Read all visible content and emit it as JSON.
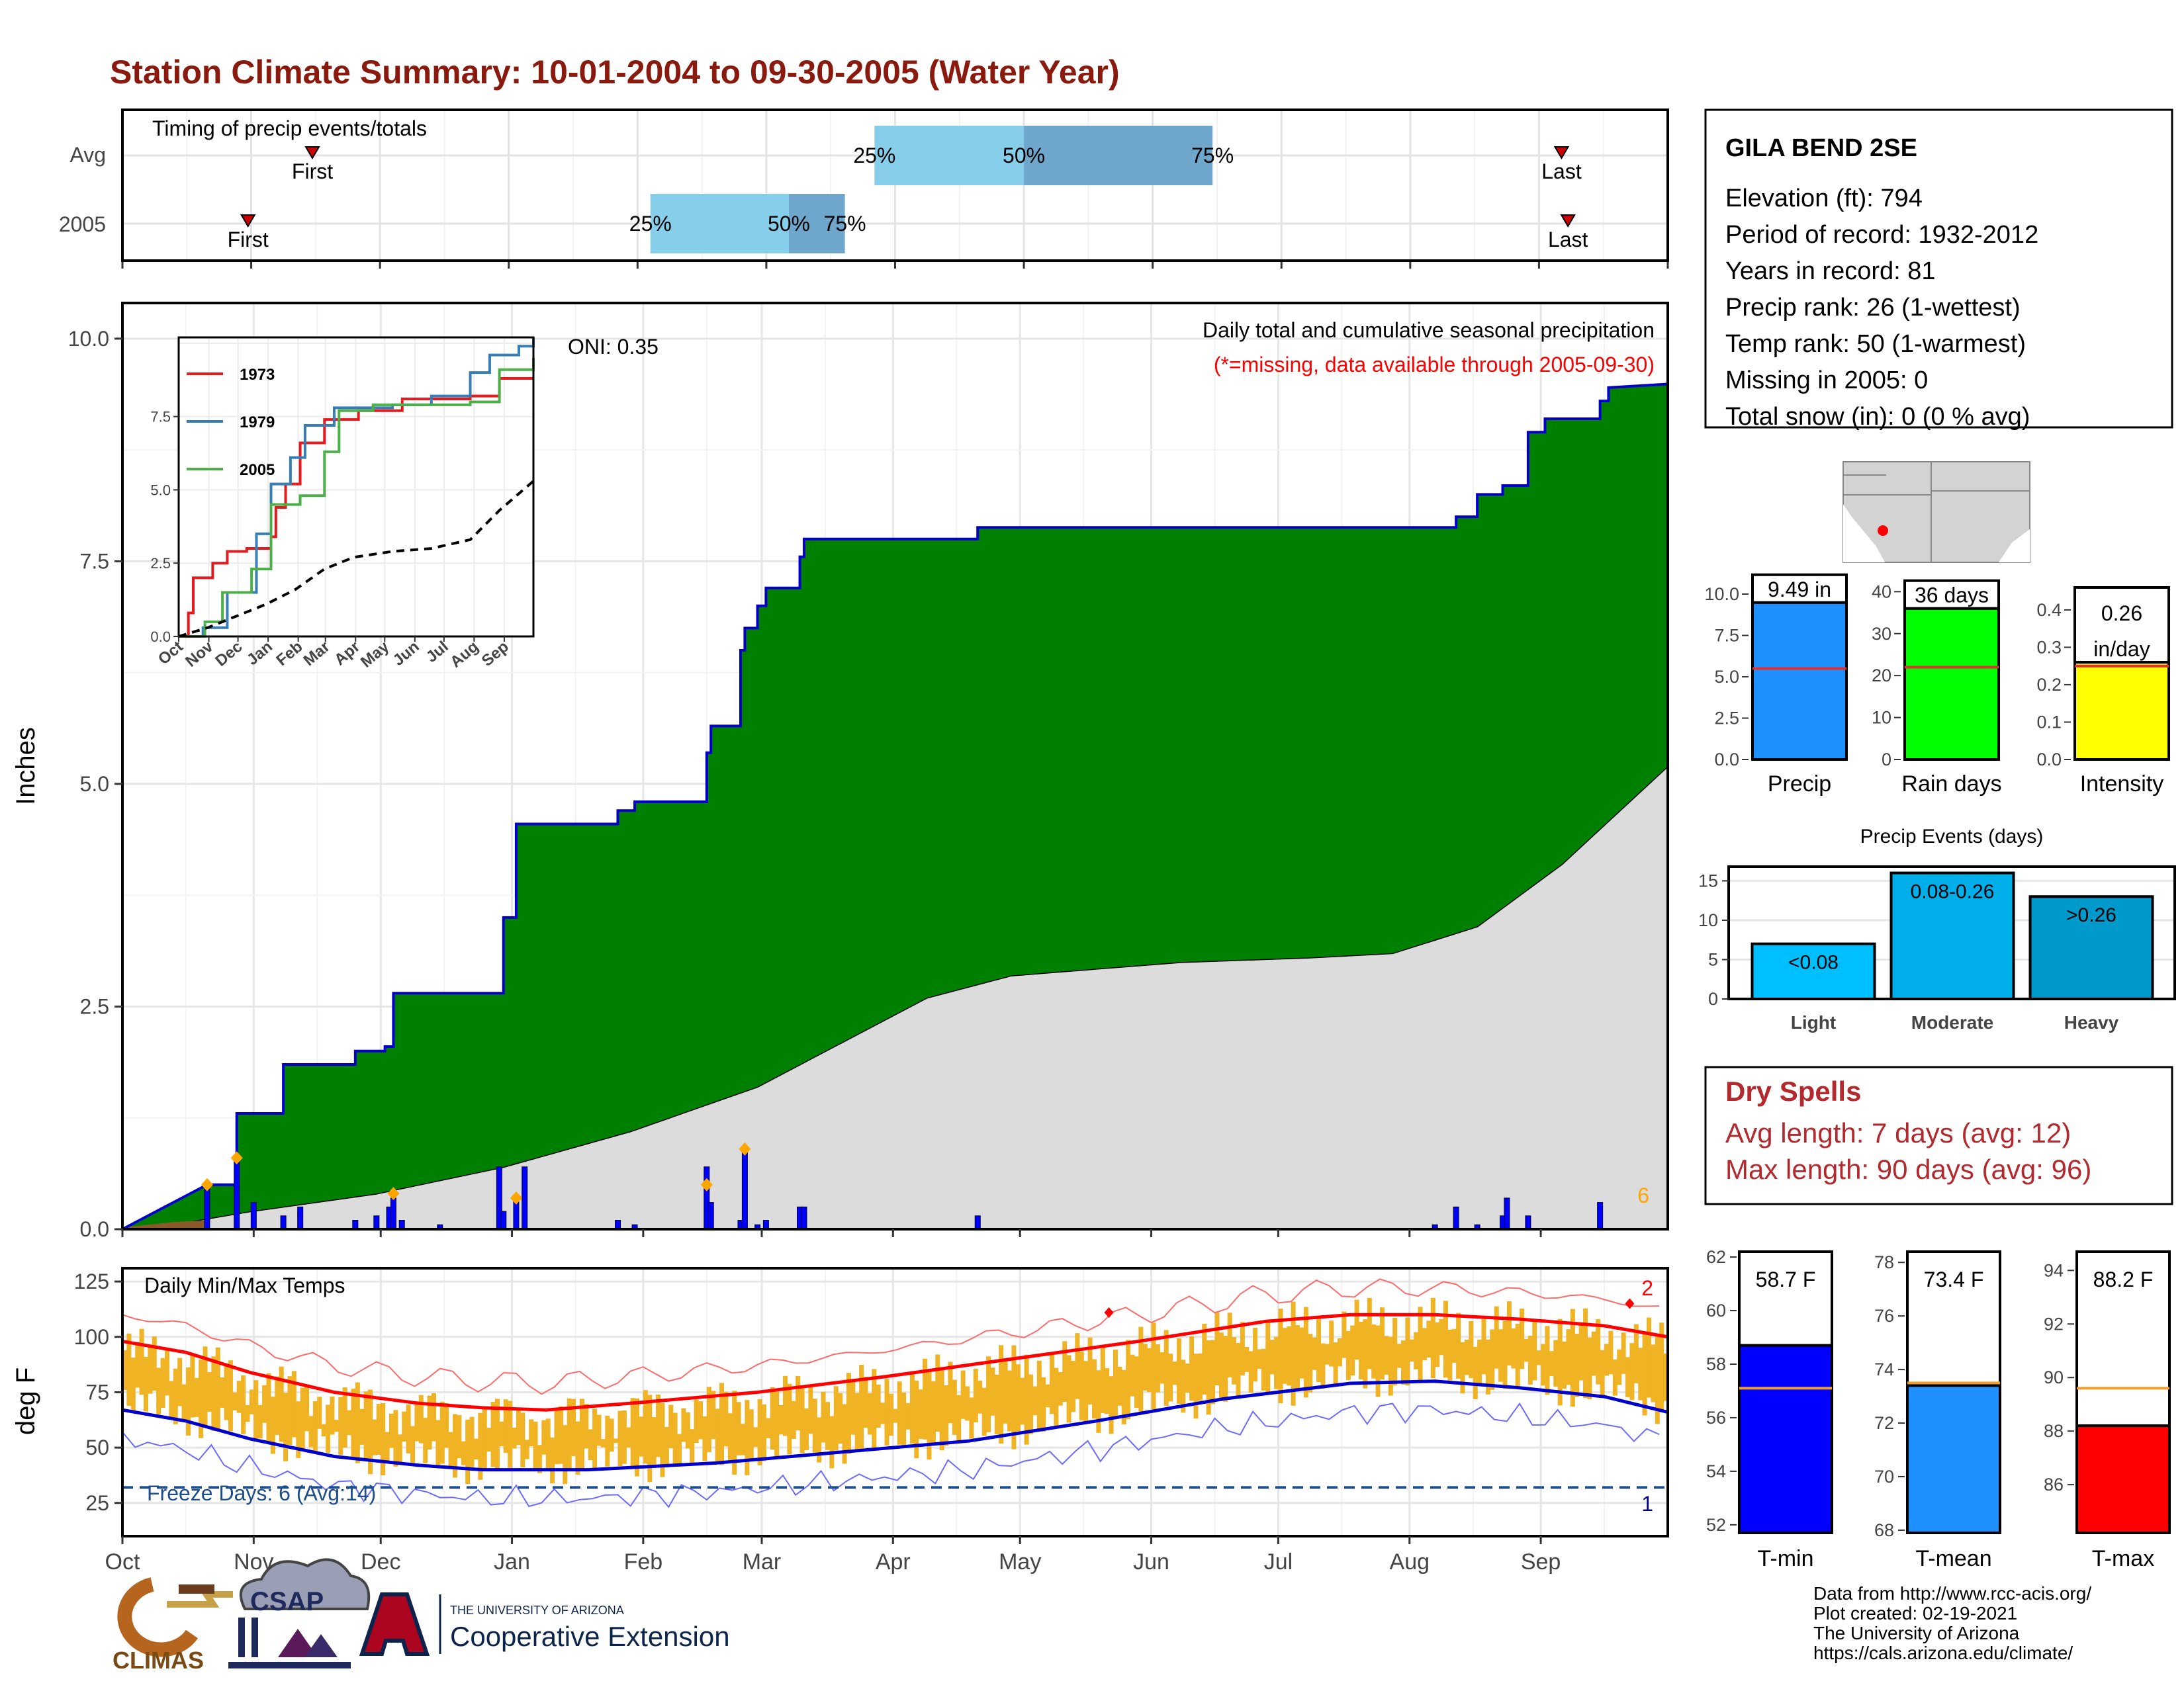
{
  "title": "Station Climate Summary: 10-01-2004 to 09-30-2005 (Water Year)",
  "timing": {
    "title": "Timing of precip events/totals",
    "rows": [
      {
        "label": "Avg",
        "first": 2.95,
        "p25": 11.68,
        "p50": 14.0,
        "p75": 16.93,
        "last": 22.35
      },
      {
        "label": "2005",
        "first": 1.95,
        "p25": 8.2,
        "p50": 10.35,
        "p75": 11.22,
        "last": 22.45
      }
    ],
    "first_label": "First",
    "last_label": "Last",
    "q_labels": [
      "25%",
      "50%",
      "75%"
    ]
  },
  "months": [
    "Oct",
    "Nov",
    "Dec",
    "Jan",
    "Feb",
    "Mar",
    "Apr",
    "May",
    "Jun",
    "Jul",
    "Aug",
    "Sep"
  ],
  "precip": {
    "ylabel": "Inches",
    "yticks": [
      "0.0",
      "2.5",
      "5.0",
      "7.5",
      "10.0"
    ],
    "ylim": [
      0,
      10.4
    ],
    "legend_line1": "Daily total and cumulative seasonal precipitation",
    "legend_line2": "(*=missing, data available through 2005-09-30)",
    "oni": "ONI: 0.35",
    "extreme_count": "6",
    "total": 9.49
  },
  "chart_data": {
    "type": "area",
    "title": "Daily total and cumulative seasonal precipitation",
    "ylabel": "Inches",
    "x_unit": "day of water year",
    "cumulative_2005": [
      [
        0,
        0
      ],
      [
        20,
        0.5
      ],
      [
        27,
        0.5
      ],
      [
        27,
        1.3
      ],
      [
        38,
        1.3
      ],
      [
        38,
        1.85
      ],
      [
        55,
        1.85
      ],
      [
        55,
        2.0
      ],
      [
        62,
        2.0
      ],
      [
        62,
        2.05
      ],
      [
        64,
        2.05
      ],
      [
        64,
        2.65
      ],
      [
        90,
        2.65
      ],
      [
        90,
        3.5
      ],
      [
        93,
        3.5
      ],
      [
        93,
        4.55
      ],
      [
        117,
        4.55
      ],
      [
        117,
        4.7
      ],
      [
        121,
        4.7
      ],
      [
        121,
        4.8
      ],
      [
        138,
        4.8
      ],
      [
        138,
        5.35
      ],
      [
        139,
        5.35
      ],
      [
        139,
        5.65
      ],
      [
        146,
        5.65
      ],
      [
        146,
        6.5
      ],
      [
        147,
        6.5
      ],
      [
        147,
        6.75
      ],
      [
        150,
        6.75
      ],
      [
        150,
        7.0
      ],
      [
        152,
        7.0
      ],
      [
        152,
        7.2
      ],
      [
        160,
        7.2
      ],
      [
        160,
        7.55
      ],
      [
        161,
        7.55
      ],
      [
        161,
        7.75
      ],
      [
        202,
        7.75
      ],
      [
        202,
        7.88
      ],
      [
        315,
        7.88
      ],
      [
        315,
        8.0
      ],
      [
        320,
        8.0
      ],
      [
        320,
        8.25
      ],
      [
        326,
        8.25
      ],
      [
        326,
        8.35
      ],
      [
        332,
        8.35
      ],
      [
        332,
        8.95
      ],
      [
        336,
        8.95
      ],
      [
        336,
        9.1
      ],
      [
        349,
        9.1
      ],
      [
        349,
        9.3
      ],
      [
        351,
        9.3
      ],
      [
        351,
        9.45
      ],
      [
        365,
        9.49
      ]
    ],
    "average_cumulative": [
      [
        0,
        0
      ],
      [
        15,
        0.08
      ],
      [
        30,
        0.2
      ],
      [
        60,
        0.4
      ],
      [
        90,
        0.7
      ],
      [
        120,
        1.1
      ],
      [
        150,
        1.6
      ],
      [
        170,
        2.1
      ],
      [
        190,
        2.6
      ],
      [
        210,
        2.85
      ],
      [
        250,
        3.0
      ],
      [
        280,
        3.05
      ],
      [
        300,
        3.1
      ],
      [
        320,
        3.4
      ],
      [
        340,
        4.1
      ],
      [
        365,
        5.2
      ]
    ],
    "daily_bars": [
      [
        20,
        0.5
      ],
      [
        27,
        0.8
      ],
      [
        31,
        0.3
      ],
      [
        38,
        0.15
      ],
      [
        42,
        0.25
      ],
      [
        55,
        0.1
      ],
      [
        60,
        0.15
      ],
      [
        63,
        0.25
      ],
      [
        64,
        0.35
      ],
      [
        66,
        0.1
      ],
      [
        75,
        0.05
      ],
      [
        89,
        0.7
      ],
      [
        90,
        0.2
      ],
      [
        93,
        0.35
      ],
      [
        95,
        0.7
      ],
      [
        117,
        0.1
      ],
      [
        121,
        0.05
      ],
      [
        138,
        0.7
      ],
      [
        139,
        0.3
      ],
      [
        146,
        0.1
      ],
      [
        147,
        0.9
      ],
      [
        150,
        0.05
      ],
      [
        152,
        0.1
      ],
      [
        160,
        0.25
      ],
      [
        161,
        0.25
      ],
      [
        202,
        0.15
      ],
      [
        310,
        0.05
      ],
      [
        315,
        0.25
      ],
      [
        320,
        0.05
      ],
      [
        326,
        0.15
      ],
      [
        327,
        0.35
      ],
      [
        332,
        0.15
      ],
      [
        349,
        0.3
      ]
    ],
    "extreme_markers": [
      [
        20,
        0.5
      ],
      [
        27,
        0.8
      ],
      [
        64,
        0.4
      ],
      [
        93,
        0.35
      ],
      [
        138,
        0.5
      ],
      [
        147,
        0.9
      ]
    ],
    "inset": {
      "yticks": [
        "0.0",
        "2.5",
        "5.0",
        "7.5"
      ],
      "xticks": [
        "Oct",
        "Nov",
        "Dec",
        "Jan",
        "Feb",
        "Mar",
        "Apr",
        "May",
        "Jun",
        "Jul",
        "Aug",
        "Sep"
      ],
      "series": [
        {
          "name": "1973",
          "color": "#e41a1c",
          "values": [
            [
              0,
              0
            ],
            [
              10,
              0.8
            ],
            [
              15,
              2.0
            ],
            [
              35,
              2.5
            ],
            [
              50,
              2.9
            ],
            [
              70,
              3.0
            ],
            [
              95,
              3.4
            ],
            [
              100,
              4.4
            ],
            [
              110,
              5.2
            ],
            [
              125,
              6.6
            ],
            [
              150,
              7.4
            ],
            [
              185,
              7.7
            ],
            [
              230,
              8.1
            ],
            [
              280,
              8.1
            ],
            [
              300,
              8.2
            ],
            [
              330,
              8.8
            ],
            [
              365,
              8.8
            ]
          ]
        },
        {
          "name": "1979",
          "color": "#377eb8",
          "values": [
            [
              0,
              0
            ],
            [
              25,
              0.3
            ],
            [
              50,
              1.5
            ],
            [
              80,
              3.5
            ],
            [
              95,
              5.2
            ],
            [
              115,
              6.1
            ],
            [
              130,
              7.2
            ],
            [
              160,
              7.8
            ],
            [
              220,
              7.9
            ],
            [
              260,
              8.2
            ],
            [
              300,
              9.0
            ],
            [
              320,
              9.6
            ],
            [
              350,
              9.9
            ],
            [
              365,
              10.2
            ]
          ]
        },
        {
          "name": "2005",
          "color": "#4daf4a",
          "values": [
            [
              0,
              0
            ],
            [
              27,
              0.5
            ],
            [
              45,
              1.5
            ],
            [
              75,
              2.3
            ],
            [
              95,
              4.5
            ],
            [
              125,
              4.8
            ],
            [
              150,
              6.3
            ],
            [
              165,
              7.7
            ],
            [
              200,
              7.9
            ],
            [
              300,
              8.0
            ],
            [
              330,
              9.1
            ],
            [
              365,
              9.5
            ]
          ]
        }
      ],
      "avg": [
        [
          0,
          0
        ],
        [
          30,
          0.3
        ],
        [
          60,
          0.7
        ],
        [
          90,
          1.1
        ],
        [
          120,
          1.6
        ],
        [
          150,
          2.3
        ],
        [
          180,
          2.7
        ],
        [
          220,
          2.9
        ],
        [
          260,
          3.0
        ],
        [
          300,
          3.3
        ],
        [
          330,
          4.3
        ],
        [
          365,
          5.3
        ]
      ]
    }
  },
  "temps": {
    "title": "Daily Min/Max Temps",
    "ylabel": "deg F",
    "yticks": [
      "25",
      "50",
      "75",
      "100",
      "125"
    ],
    "freeze_label": "Freeze Days: 6 (Avg:14)",
    "count_hi": "2",
    "count_lo": "1",
    "avg_max": [
      [
        0,
        98
      ],
      [
        15,
        93
      ],
      [
        30,
        84
      ],
      [
        50,
        75
      ],
      [
        70,
        70
      ],
      [
        85,
        68
      ],
      [
        100,
        67
      ],
      [
        120,
        70
      ],
      [
        150,
        75
      ],
      [
        180,
        82
      ],
      [
        210,
        90
      ],
      [
        240,
        98
      ],
      [
        270,
        107
      ],
      [
        290,
        110
      ],
      [
        310,
        110
      ],
      [
        330,
        108
      ],
      [
        350,
        105
      ],
      [
        365,
        100
      ]
    ],
    "avg_min": [
      [
        0,
        67
      ],
      [
        15,
        62
      ],
      [
        30,
        54
      ],
      [
        50,
        46
      ],
      [
        70,
        42
      ],
      [
        85,
        40
      ],
      [
        110,
        40
      ],
      [
        140,
        43
      ],
      [
        170,
        48
      ],
      [
        200,
        53
      ],
      [
        230,
        62
      ],
      [
        260,
        72
      ],
      [
        290,
        79
      ],
      [
        310,
        80
      ],
      [
        330,
        77
      ],
      [
        350,
        73
      ],
      [
        365,
        66
      ]
    ]
  },
  "station": {
    "name": "GILA BEND 2SE",
    "lines": [
      "Elevation (ft): 794",
      "Period of record: 1932-2012",
      "Years in record: 81",
      "Precip rank: 26 (1-wettest)",
      "Temp rank: 50 (1-warmest)",
      "Missing in 2005: 0",
      "Total snow (in): 0 (0 % avg)"
    ]
  },
  "summary_bars": [
    {
      "label": "Precip",
      "value": 9.49,
      "text": "9.49 in",
      "avg": 5.5,
      "yticks": [
        "0.0",
        "2.5",
        "5.0",
        "7.5",
        "10.0"
      ],
      "ymax": 10.4,
      "color": "#1e90ff"
    },
    {
      "label": "Rain days",
      "value": 36,
      "text": "36 days",
      "avg": 22,
      "yticks": [
        "0",
        "10",
        "20",
        "30",
        "40"
      ],
      "ymax": 41,
      "color": "#00ff00"
    },
    {
      "label": "Intensity",
      "value": 0.26,
      "text": "0.26 in/day",
      "avg": 0.25,
      "yticks": [
        "0.0",
        "0.1",
        "0.2",
        "0.3",
        "0.4"
      ],
      "ymax": 0.46,
      "color": "#ffff00"
    }
  ],
  "precip_events": {
    "title": "Precip Events (days)",
    "yticks": [
      "0",
      "5",
      "10",
      "15"
    ],
    "bars": [
      {
        "label": "Light",
        "value": 7,
        "text": "<0.08",
        "color": "#00bfff"
      },
      {
        "label": "Moderate",
        "value": 16,
        "text": "0.08-0.26",
        "color": "#00aeea"
      },
      {
        "label": "Heavy",
        "value": 13,
        "text": ">0.26",
        "color": "#0099cc"
      }
    ]
  },
  "dry_spells": {
    "title": "Dry Spells",
    "line1": "Avg length: 7 days (avg: 12)",
    "line2": "Max length: 90 days (avg: 96)"
  },
  "temp_bars": [
    {
      "label": "T-min",
      "value": 58.7,
      "text": "58.7 F",
      "avg": 57.1,
      "ymin": 51.7,
      "ymax": 62.2,
      "yticks": [
        "52",
        "54",
        "56",
        "58",
        "60",
        "62"
      ],
      "color": "#0000ff"
    },
    {
      "label": "T-mean",
      "value": 73.4,
      "text": "73.4 F",
      "avg": 73.5,
      "ymin": 67.9,
      "ymax": 78.4,
      "yticks": [
        "68",
        "70",
        "72",
        "74",
        "76",
        "78"
      ],
      "color": "#1e90ff"
    },
    {
      "label": "T-max",
      "value": 88.2,
      "text": "88.2 F",
      "avg": 89.6,
      "ymin": 84.2,
      "ymax": 94.7,
      "yticks": [
        "86",
        "88",
        "90",
        "92",
        "94"
      ],
      "color": "#ff0000"
    }
  ],
  "credits": [
    "Data from http://www.rcc-acis.org/",
    "Plot created: 02-19-2021",
    "The University of Arizona",
    "https://cals.arizona.edu/climate/"
  ],
  "logos": {
    "climas": "CLIMAS",
    "csap": "CSAP",
    "ua_small": "THE UNIVERSITY OF ARIZONA",
    "ua_big": "Cooperative Extension"
  }
}
